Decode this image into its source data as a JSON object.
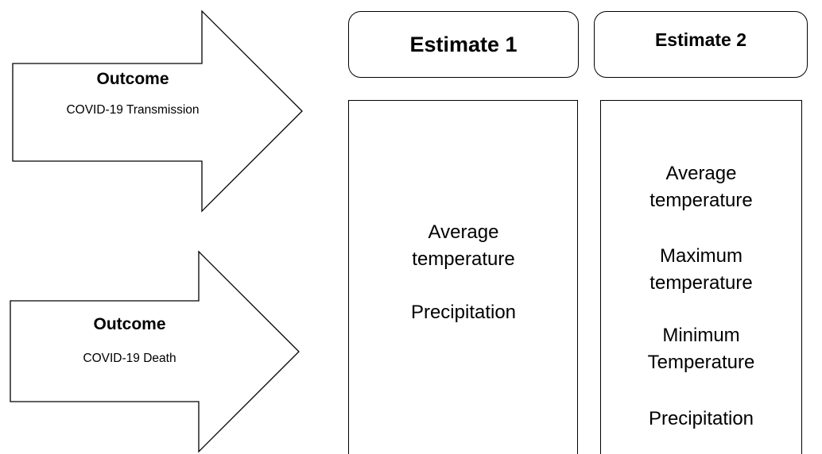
{
  "outcomes": [
    {
      "title": "Outcome",
      "subtitle": "COVID-19 Transmission"
    },
    {
      "title": "Outcome",
      "subtitle": "COVID-19 Death"
    }
  ],
  "estimates": [
    {
      "label": "Estimate 1",
      "items": [
        "Average temperature",
        "Precipitation"
      ]
    },
    {
      "label": "Estimate 2",
      "items": [
        "Average temperature",
        "Maximum temperature",
        "Minimum Temperature",
        "Precipitation"
      ]
    }
  ],
  "colors": {
    "stroke": "#000000",
    "fill": "#ffffff"
  }
}
